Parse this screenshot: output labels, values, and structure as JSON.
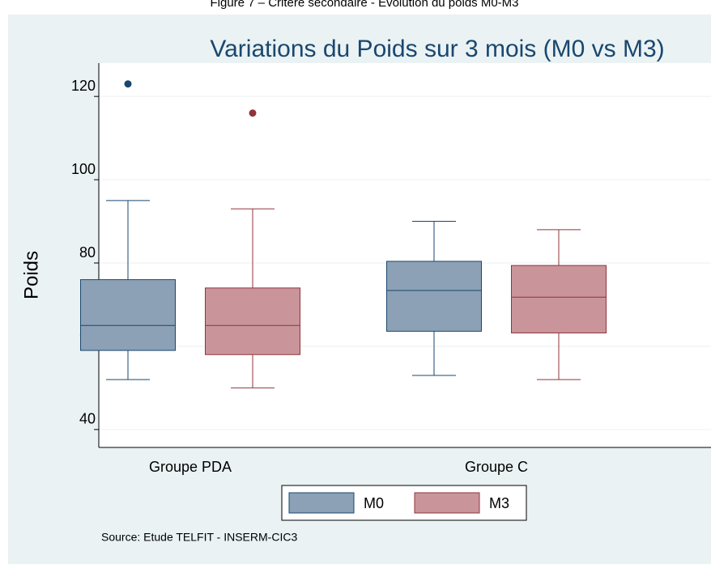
{
  "chart_data": {
    "type": "box",
    "caption": "Figure 7 – Critère secondaire - Evolution du poids M0-M3",
    "title": "Variations du Poids sur 3 mois (M0 vs M3)",
    "y_label": "Poids",
    "source": "Source:  Etude TELFIT - INSERM-CIC3",
    "categories": [
      "Groupe PDA",
      "Groupe C"
    ],
    "ylim": [
      35.7,
      128
    ],
    "yticks": [
      40,
      60,
      80,
      100,
      120
    ],
    "grid": true,
    "legend": "bottom",
    "series": [
      {
        "name": "M0",
        "color": "#8ca1b6",
        "stroke": "#1a476f",
        "values": [
          {
            "min": 52,
            "q1": 59,
            "median": 65,
            "q3": 76,
            "max": 95,
            "outliers": [
              123
            ]
          },
          {
            "min": 53,
            "q1": 63.6,
            "median": 73.4,
            "q3": 80.4,
            "max": 90,
            "outliers": []
          }
        ]
      },
      {
        "name": "M3",
        "color": "#c9959a",
        "stroke": "#90353b",
        "values": [
          {
            "min": 50,
            "q1": 58,
            "median": 65,
            "q3": 74,
            "max": 93,
            "outliers": [
              116
            ]
          },
          {
            "min": 52,
            "q1": 63.2,
            "median": 71.8,
            "q3": 79.4,
            "max": 88,
            "outliers": []
          }
        ]
      }
    ]
  }
}
